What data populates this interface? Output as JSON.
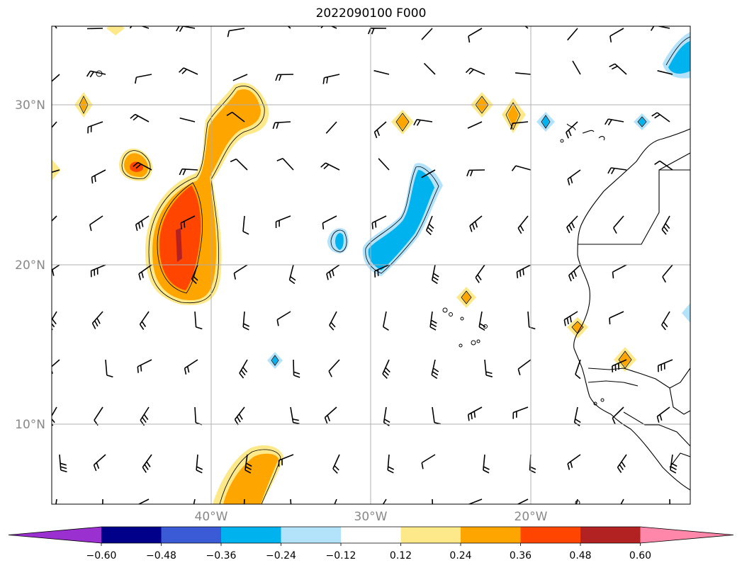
{
  "title": "2022090100 F000",
  "map": {
    "lat_labels": [
      {
        "label": "30°N",
        "lat": 30
      },
      {
        "label": "20°N",
        "lat": 20
      },
      {
        "label": "10°N",
        "lat": 10
      }
    ],
    "lon_labels": [
      {
        "label": "40°W",
        "lon": -40
      },
      {
        "label": "30°W",
        "lon": -30
      },
      {
        "label": "20°W",
        "lon": -20
      }
    ],
    "extent": {
      "lon_min": -50,
      "lon_max": -10,
      "lat_min": 5,
      "lat_max": 35
    },
    "grid": true
  },
  "colorbar": {
    "colors": [
      "#9b30d0",
      "#00008b",
      "#3b5bd6",
      "#00b2ee",
      "#b3e2fb",
      "#ffffff",
      "#fde98a",
      "#ffa500",
      "#ff4500",
      "#b22222",
      "#ff88aa"
    ],
    "labels": [
      "−0.60",
      "−0.48",
      "−0.36",
      "−0.24",
      "−0.12",
      "0.12",
      "0.24",
      "0.36",
      "0.48",
      "0.60"
    ]
  }
}
